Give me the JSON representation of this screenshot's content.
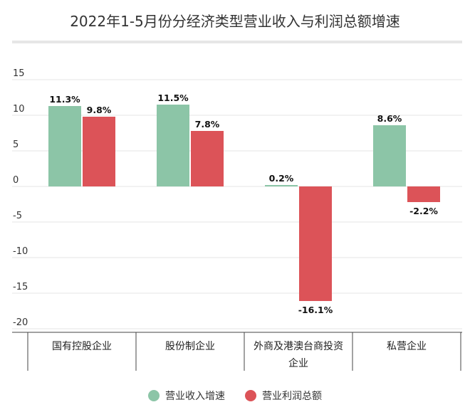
{
  "title": "2022年1-5月份分经济类型营业收入与利润总额增速",
  "colors": {
    "revenue": "#8cc5a7",
    "profit": "#dc5358",
    "grid": "#e4e4e4",
    "axis": "#555555"
  },
  "chart_data": {
    "type": "bar",
    "title": "2022年1-5月份分经济类型营业收入与利润总额增速",
    "categories": [
      "国有控股企业",
      "股份制企业",
      "外商及港澳台商投资企业",
      "私营企业"
    ],
    "series": [
      {
        "name": "营业收入增速",
        "values": [
          11.3,
          11.5,
          0.2,
          8.6
        ],
        "labels": [
          "11.3%",
          "11.5%",
          "0.2%",
          "8.6%"
        ]
      },
      {
        "name": "营业利润总额",
        "values": [
          9.8,
          7.8,
          -16.1,
          -2.2
        ],
        "labels": [
          "9.8%",
          "7.8%",
          "-16.1%",
          "-2.2%"
        ]
      }
    ],
    "yticks": [
      15,
      10,
      5,
      0,
      -5,
      -10,
      -15,
      -20
    ],
    "ylim": [
      -20,
      15
    ],
    "grid": true,
    "legend": "bottom"
  }
}
